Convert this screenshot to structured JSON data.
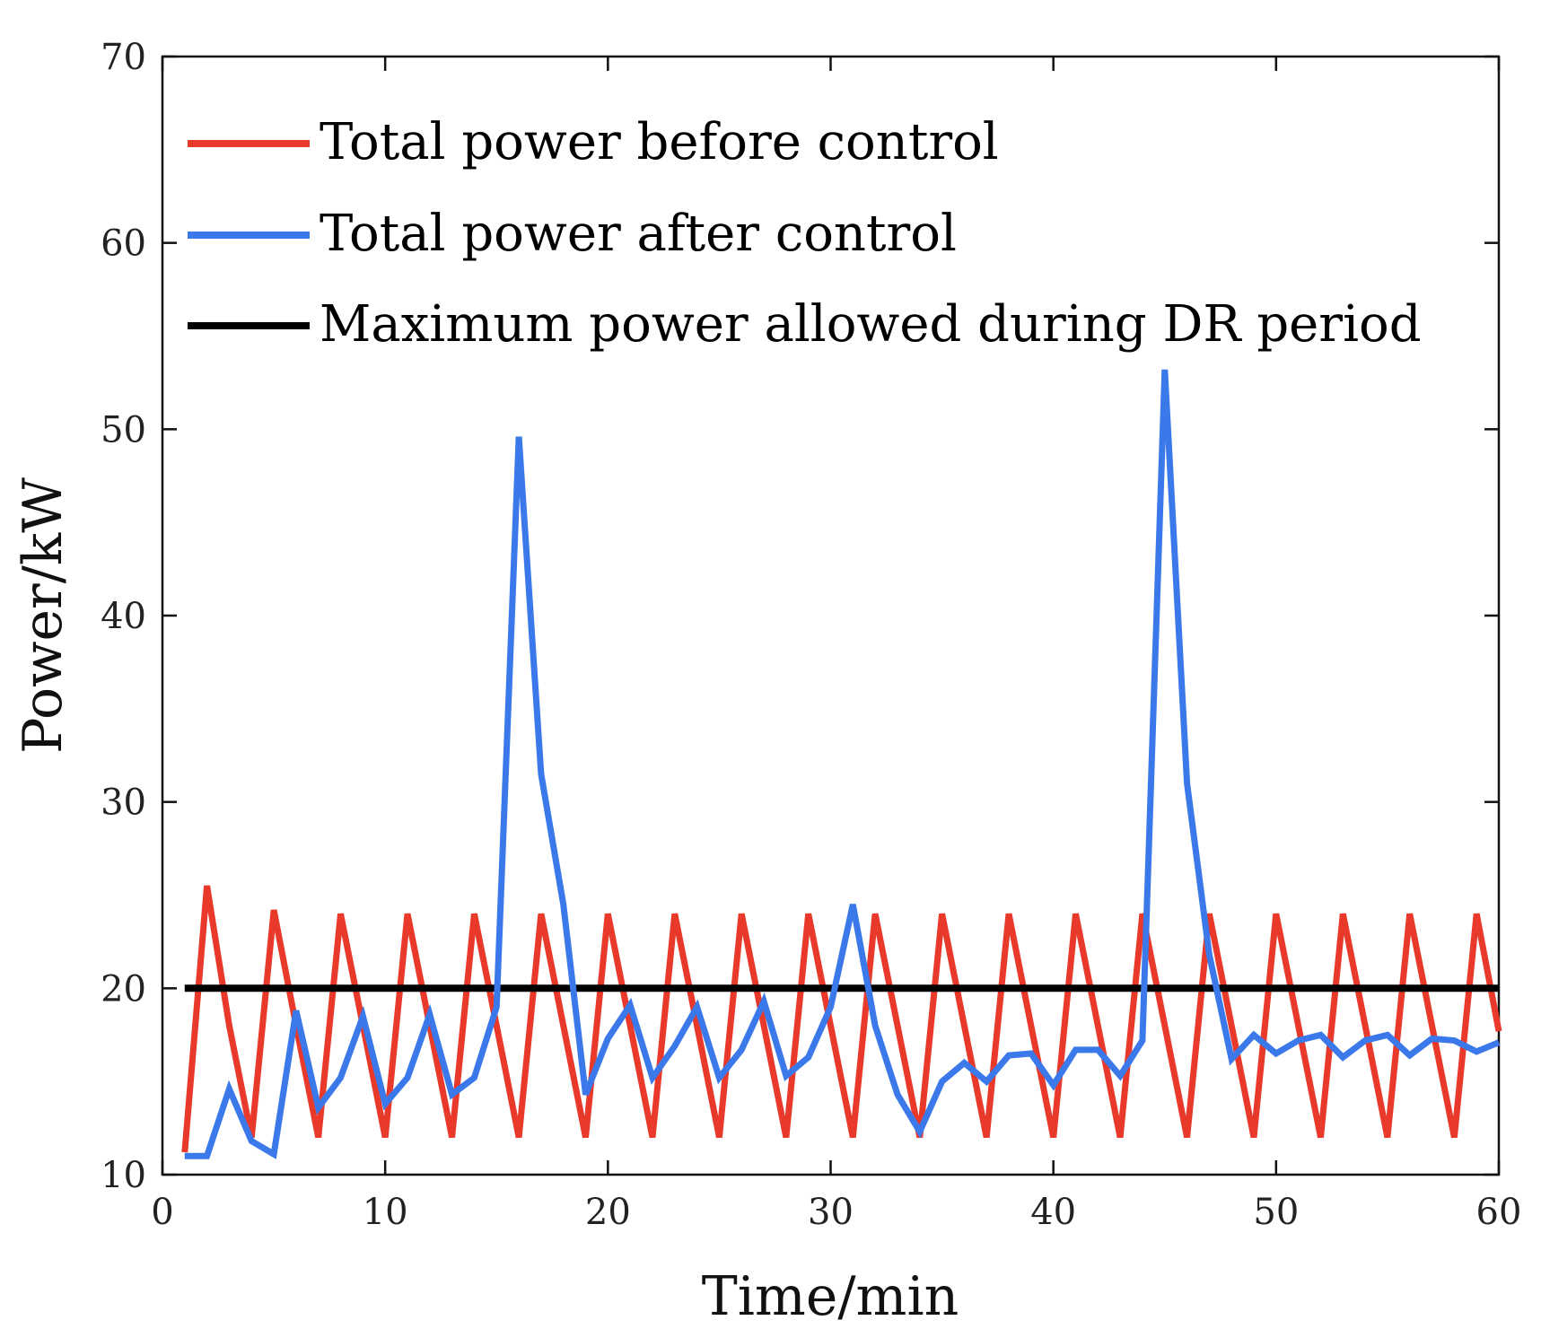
{
  "chart_data": {
    "type": "line",
    "title": "",
    "xlabel": "Time/min",
    "ylabel": "Power/kW",
    "xlim": [
      0,
      60
    ],
    "ylim": [
      10,
      70
    ],
    "xticks": [
      0,
      10,
      20,
      30,
      40,
      50,
      60
    ],
    "yticks": [
      10,
      20,
      30,
      40,
      50,
      60,
      70
    ],
    "grid": false,
    "legend_position": "top-left",
    "series": [
      {
        "name": "Total power before control",
        "color": "#e8392b",
        "x": [
          1,
          2,
          3,
          4,
          5,
          6,
          7,
          8,
          9,
          10,
          11,
          12,
          13,
          14,
          15,
          16,
          17,
          18,
          19,
          20,
          21,
          22,
          23,
          24,
          25,
          26,
          27,
          28,
          29,
          30,
          31,
          32,
          33,
          34,
          35,
          36,
          37,
          38,
          39,
          40,
          41,
          42,
          43,
          44,
          45,
          46,
          47,
          48,
          49,
          50,
          51,
          52,
          53,
          54,
          55,
          56,
          57,
          58,
          59,
          60
        ],
        "values": [
          11.2,
          25.5,
          18.0,
          12.0,
          24.2,
          18.0,
          12.0,
          24.0,
          18.0,
          12.0,
          24.0,
          18.0,
          12.0,
          24.0,
          18.0,
          12.0,
          24.0,
          18.0,
          12.0,
          24.0,
          18.0,
          12.0,
          24.0,
          18.0,
          12.0,
          24.0,
          18.0,
          12.0,
          24.0,
          18.0,
          12.0,
          24.0,
          18.0,
          12.0,
          24.0,
          18.0,
          12.0,
          24.0,
          18.0,
          12.0,
          24.0,
          18.0,
          12.0,
          24.0,
          18.0,
          12.0,
          24.0,
          18.0,
          12.0,
          24.0,
          18.0,
          12.0,
          24.0,
          18.0,
          12.0,
          24.0,
          18.0,
          12.0,
          24.0,
          17.7
        ]
      },
      {
        "name": "Total power after control",
        "color": "#3b79ea",
        "x": [
          1,
          2,
          3,
          4,
          5,
          6,
          7,
          8,
          9,
          10,
          11,
          12,
          13,
          14,
          15,
          16,
          17,
          18,
          19,
          20,
          21,
          22,
          23,
          24,
          25,
          26,
          27,
          28,
          29,
          30,
          31,
          32,
          33,
          34,
          35,
          36,
          37,
          38,
          39,
          40,
          41,
          42,
          43,
          44,
          45,
          46,
          47,
          48,
          49,
          50,
          51,
          52,
          53,
          54,
          55,
          56,
          57,
          58,
          59,
          60
        ],
        "values": [
          11.0,
          11.0,
          14.6,
          11.8,
          11.1,
          18.8,
          13.6,
          15.2,
          18.5,
          13.8,
          15.2,
          18.6,
          14.3,
          15.2,
          19.0,
          49.6,
          31.5,
          24.5,
          14.3,
          17.3,
          19.1,
          15.2,
          16.9,
          19.0,
          15.2,
          16.7,
          19.3,
          15.3,
          16.3,
          19.0,
          24.5,
          18.0,
          14.3,
          12.3,
          15.0,
          16.0,
          15.0,
          16.4,
          16.5,
          14.8,
          16.7,
          16.7,
          15.3,
          17.2,
          53.2,
          31.0,
          21.8,
          16.2,
          17.5,
          16.5,
          17.2,
          17.5,
          16.3,
          17.2,
          17.5,
          16.4,
          17.3,
          17.2,
          16.6,
          17.1
        ]
      },
      {
        "name": "Maximum power allowed during DR period",
        "color": "#000000",
        "x": [
          1,
          60
        ],
        "values": [
          20,
          20
        ]
      }
    ]
  }
}
